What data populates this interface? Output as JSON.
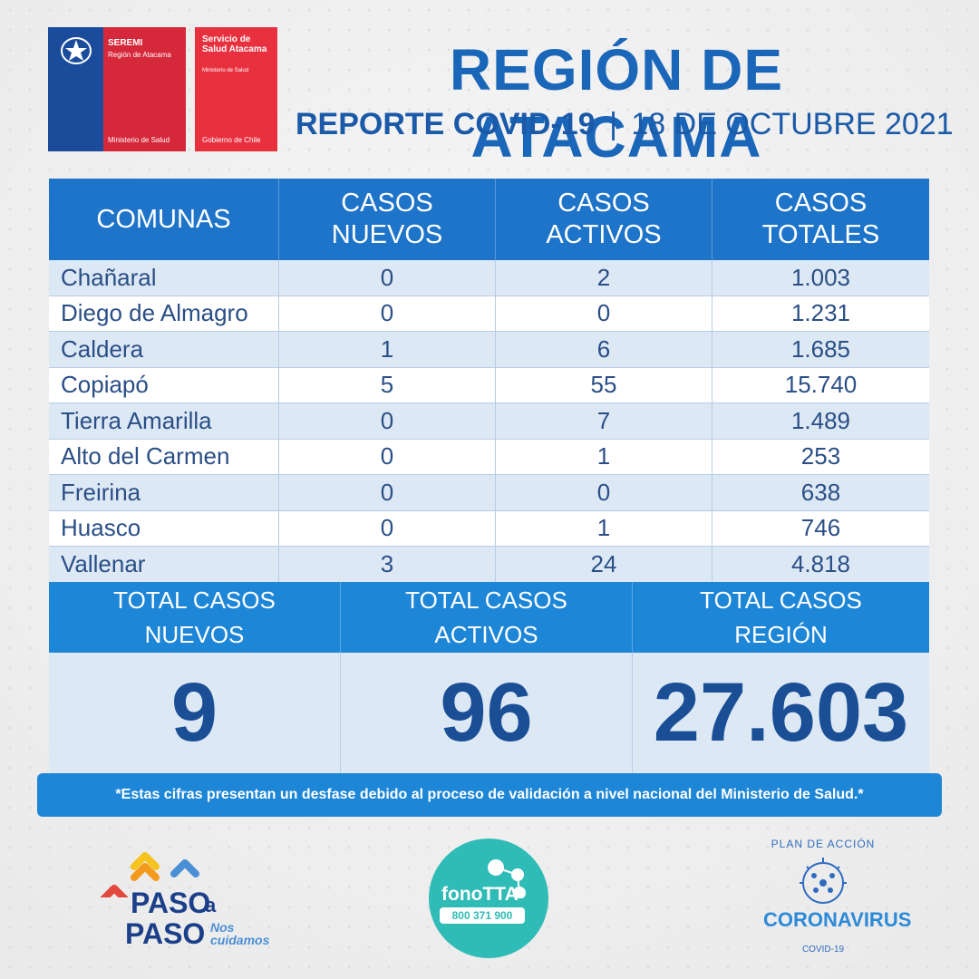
{
  "header": {
    "seremi": {
      "title": "SEREMI",
      "region": "Región de Atacama",
      "ministry": "Ministerio de Salud"
    },
    "servicio": {
      "title": "Servicio de Salud Atacama",
      "sub": "Ministerio de Salud",
      "gov": "Gobierno de Chile"
    },
    "title": "REGIÓN DE ATACAMA",
    "report": "REPORTE COVID-19",
    "separator": "|",
    "date": "18 DE OCTUBRE 2021"
  },
  "table": {
    "columns": {
      "comunas": "COMUNAS",
      "nuevos": "CASOS NUEVOS",
      "activos": "CASOS ACTIVOS",
      "totales": "CASOS TOTALES"
    },
    "rows": [
      {
        "name": "Chañaral",
        "nuevos": "0",
        "activos": "2",
        "totales": "1.003"
      },
      {
        "name": "Diego de Almagro",
        "nuevos": "0",
        "activos": "0",
        "totales": "1.231"
      },
      {
        "name": "Caldera",
        "nuevos": "1",
        "activos": "6",
        "totales": "1.685"
      },
      {
        "name": "Copiapó",
        "nuevos": "5",
        "activos": "55",
        "totales": "15.740"
      },
      {
        "name": "Tierra Amarilla",
        "nuevos": "0",
        "activos": "7",
        "totales": "1.489"
      },
      {
        "name": "Alto del Carmen",
        "nuevos": "0",
        "activos": "1",
        "totales": "253"
      },
      {
        "name": "Freirina",
        "nuevos": "0",
        "activos": "0",
        "totales": "638"
      },
      {
        "name": "Huasco",
        "nuevos": "0",
        "activos": "1",
        "totales": "746"
      },
      {
        "name": "Vallenar",
        "nuevos": "3",
        "activos": "24",
        "totales": "4.818"
      }
    ]
  },
  "totals": {
    "nuevos_label": "TOTAL CASOS NUEVOS",
    "activos_label": "TOTAL CASOS ACTIVOS",
    "region_label": "TOTAL CASOS REGIÓN",
    "nuevos": "9",
    "activos": "96",
    "region": "27.603"
  },
  "note": "*Estas cifras presentan un desfase debido al proceso de validación a nivel nacional del Ministerio de Salud.*",
  "footer": {
    "paso": {
      "w1": "PASO",
      "a": "a",
      "w2": "PASO",
      "nos": "Nos",
      "cuidamos": "cuidamos"
    },
    "fono": {
      "brand": "fonoTTA",
      "phone": "800 371 900"
    },
    "corona": {
      "plan": "PLAN DE ACCIÓN",
      "word": "CORONAVIRUS",
      "covid": "COVID-19"
    }
  }
}
